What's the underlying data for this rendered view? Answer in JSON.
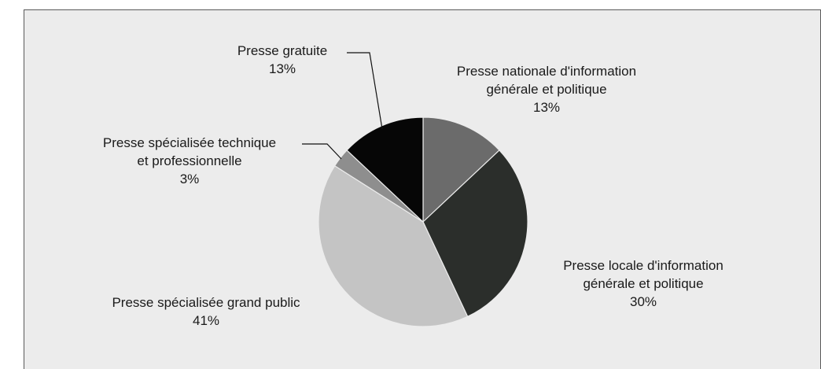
{
  "chart_data": {
    "type": "pie",
    "unit": "%",
    "slices": [
      {
        "name": "Presse nationale d'information générale et politique",
        "lines": [
          "Presse nationale d'information",
          "générale et politique"
        ],
        "value": 13,
        "value_label": "13%",
        "color": "#6b6b6b"
      },
      {
        "name": "Presse locale d'information générale et politique",
        "lines": [
          "Presse locale d'information",
          "générale et politique"
        ],
        "value": 30,
        "value_label": "30%",
        "color": "#2b2e2b"
      },
      {
        "name": "Presse spécialisée grand public",
        "lines": [
          "Presse spécialisée grand public"
        ],
        "value": 41,
        "value_label": "41%",
        "color": "#c4c4c4"
      },
      {
        "name": "Presse spécialisée technique et professionnelle",
        "lines": [
          "Presse spécialisée technique",
          "et professionnelle"
        ],
        "value": 3,
        "value_label": "3%",
        "color": "#8e8e8e"
      },
      {
        "name": "Presse gratuite",
        "lines": [
          "Presse gratuite"
        ],
        "value": 13,
        "value_label": "13%",
        "color": "#060606"
      }
    ]
  },
  "colors": {
    "panel_background": "#ececec",
    "panel_border": "#5a5a5a",
    "slice_edge": "#ececec"
  }
}
